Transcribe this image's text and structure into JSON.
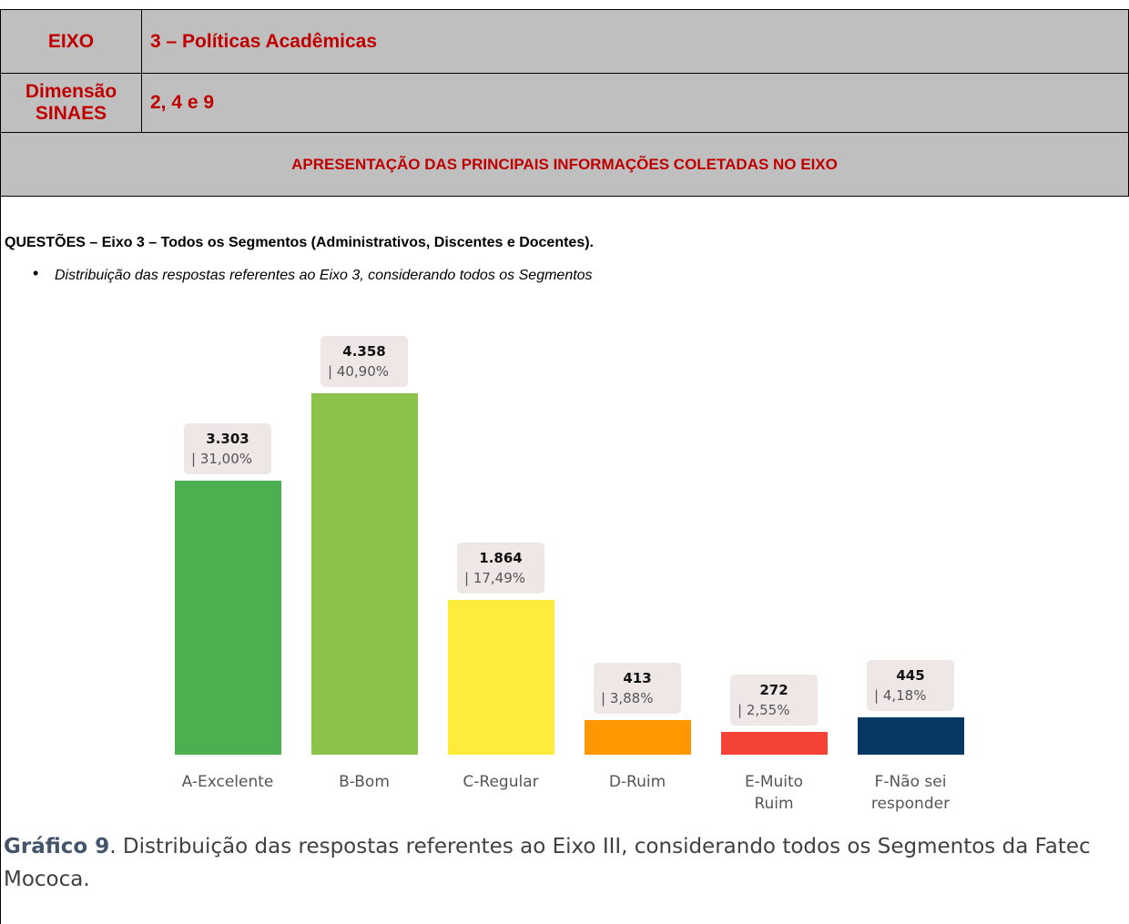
{
  "header": {
    "eixo_label": "EIXO",
    "eixo_value": "3 – Políticas Acadêmicas",
    "dimensao_label_1": "Dimensão",
    "dimensao_label_2": "SINAES",
    "dimensao_value": "2, 4 e 9",
    "section_title": "APRESENTAÇÃO DAS PRINCIPAIS INFORMAÇÕES COLETADAS NO EIXO"
  },
  "question": "QUESTÕES – Eixo 3 – Todos os Segmentos (Administrativos, Discentes e Docentes).",
  "bullet": "Distribuição das respostas referentes ao Eixo 3, considerando todos os Segmentos",
  "chart_data": {
    "type": "bar",
    "categories": [
      "A-Excelente",
      "B-Bom",
      "C-Regular",
      "D-Ruim",
      "E-Muito Ruim",
      "F-Não sei responder"
    ],
    "values": [
      3303,
      4358,
      1864,
      413,
      272,
      445
    ],
    "value_labels": [
      "3.303",
      "4.358",
      "1.864",
      "413",
      "272",
      "445"
    ],
    "percent_labels": [
      "| 31,00%",
      "| 40,90%",
      "| 17,49%",
      "| 3,88%",
      "| 2,55%",
      "| 4,18%"
    ],
    "colors": [
      "#4caf50",
      "#8bc34a",
      "#ffeb3b",
      "#ff9800",
      "#f44336",
      "#073763"
    ]
  },
  "caption": {
    "label": "Gráfico 9",
    "text": ". Distribuição das respostas referentes ao Eixo III, considerando todos os Segmentos da Fatec Mococa."
  }
}
